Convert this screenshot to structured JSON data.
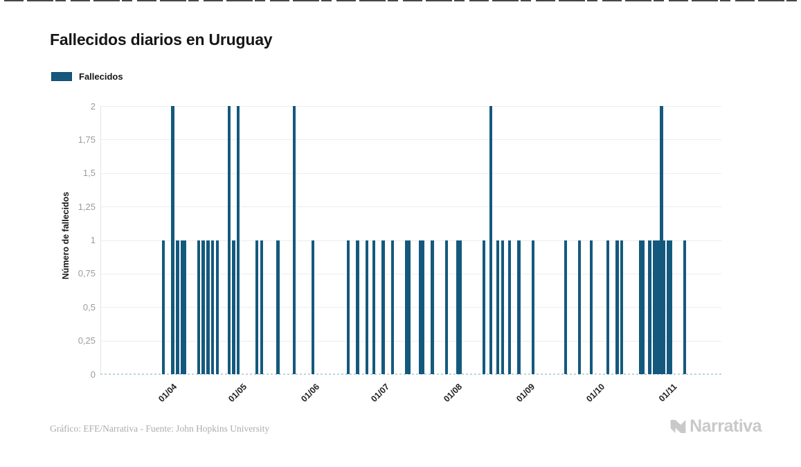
{
  "header": {
    "title": "Fallecidos diarios en Uruguay"
  },
  "legend": {
    "items": [
      {
        "label": "Fallecidos",
        "color": "#14597d"
      }
    ]
  },
  "chart_data": {
    "type": "bar",
    "title": "Fallecidos diarios en Uruguay",
    "xlabel": "",
    "ylabel": "Número de fallecidos",
    "ylim": [
      0,
      2
    ],
    "grid": "horizontal",
    "legend_position": "top-left",
    "series_name": "Fallecidos",
    "series_color": "#14597d",
    "y_ticks": [
      {
        "value": 0,
        "label": "0"
      },
      {
        "value": 0.25,
        "label": "0,25"
      },
      {
        "value": 0.5,
        "label": "0,5"
      },
      {
        "value": 0.75,
        "label": "0,75"
      },
      {
        "value": 1,
        "label": "1"
      },
      {
        "value": 1.25,
        "label": "1,25"
      },
      {
        "value": 1.5,
        "label": "1,5"
      },
      {
        "value": 1.75,
        "label": "1,75"
      },
      {
        "value": 2,
        "label": "2"
      }
    ],
    "x_ticks": [
      "01/04",
      "01/05",
      "01/06",
      "01/07",
      "01/08",
      "01/09",
      "01/10",
      "01/11"
    ],
    "x_domain_dates": [
      "05/03",
      "25/11"
    ],
    "bars": [
      {
        "date": "01/04",
        "value": 1
      },
      {
        "date": "05/04",
        "value": 2
      },
      {
        "date": "07/04",
        "value": 1
      },
      {
        "date": "09/04",
        "value": 1
      },
      {
        "date": "10/04",
        "value": 1
      },
      {
        "date": "16/04",
        "value": 1
      },
      {
        "date": "18/04",
        "value": 1
      },
      {
        "date": "20/04",
        "value": 1
      },
      {
        "date": "22/04",
        "value": 1
      },
      {
        "date": "24/04",
        "value": 1
      },
      {
        "date": "29/04",
        "value": 2
      },
      {
        "date": "01/05",
        "value": 1
      },
      {
        "date": "03/05",
        "value": 2
      },
      {
        "date": "11/05",
        "value": 1
      },
      {
        "date": "13/05",
        "value": 1
      },
      {
        "date": "20/05",
        "value": 1
      },
      {
        "date": "27/05",
        "value": 2
      },
      {
        "date": "04/06",
        "value": 1
      },
      {
        "date": "19/06",
        "value": 1
      },
      {
        "date": "23/06",
        "value": 1
      },
      {
        "date": "27/06",
        "value": 1
      },
      {
        "date": "30/06",
        "value": 1
      },
      {
        "date": "04/07",
        "value": 1
      },
      {
        "date": "08/07",
        "value": 1
      },
      {
        "date": "14/07",
        "value": 1
      },
      {
        "date": "15/07",
        "value": 1
      },
      {
        "date": "20/07",
        "value": 1
      },
      {
        "date": "21/07",
        "value": 1
      },
      {
        "date": "25/07",
        "value": 1
      },
      {
        "date": "31/07",
        "value": 1
      },
      {
        "date": "05/08",
        "value": 1
      },
      {
        "date": "06/08",
        "value": 1
      },
      {
        "date": "16/08",
        "value": 1
      },
      {
        "date": "19/08",
        "value": 2
      },
      {
        "date": "22/08",
        "value": 1
      },
      {
        "date": "24/08",
        "value": 1
      },
      {
        "date": "27/08",
        "value": 1
      },
      {
        "date": "31/08",
        "value": 1
      },
      {
        "date": "06/09",
        "value": 1
      },
      {
        "date": "20/09",
        "value": 1
      },
      {
        "date": "26/09",
        "value": 1
      },
      {
        "date": "01/10",
        "value": 1
      },
      {
        "date": "08/10",
        "value": 1
      },
      {
        "date": "12/10",
        "value": 1
      },
      {
        "date": "14/10",
        "value": 1
      },
      {
        "date": "22/10",
        "value": 1
      },
      {
        "date": "23/10",
        "value": 1
      },
      {
        "date": "26/10",
        "value": 1
      },
      {
        "date": "28/10",
        "value": 1
      },
      {
        "date": "29/10",
        "value": 1
      },
      {
        "date": "30/10",
        "value": 1
      },
      {
        "date": "31/10",
        "value": 2
      },
      {
        "date": "01/11",
        "value": 1
      },
      {
        "date": "03/11",
        "value": 1
      },
      {
        "date": "04/11",
        "value": 1
      },
      {
        "date": "10/11",
        "value": 1
      }
    ]
  },
  "footer": {
    "credit": "Gráfico: EFE/Narrativa - Fuente: John Hopkins University",
    "brand": "Narrativa"
  }
}
